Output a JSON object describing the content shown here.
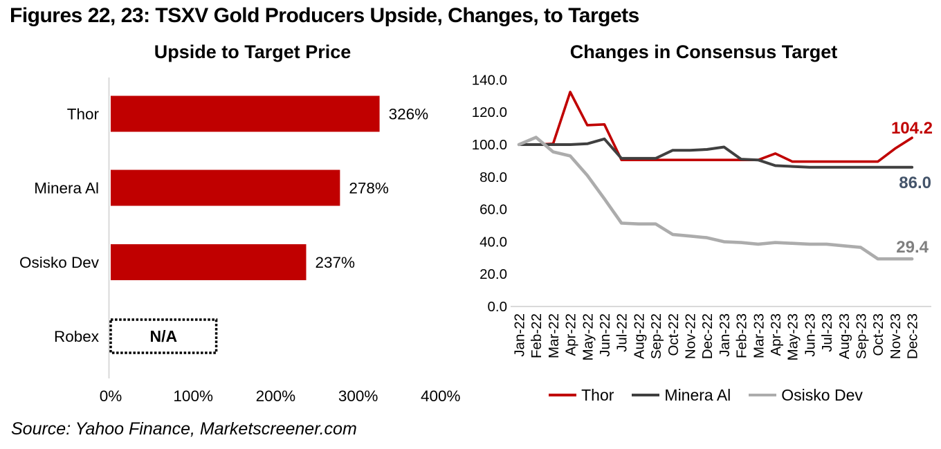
{
  "page": {
    "title": "Figures 22, 23: TSXV Gold Producers Upside, Changes, to Targets",
    "source": "Source: Yahoo Finance, Marketscreener.com"
  },
  "colors": {
    "bar_red": "#C00000",
    "thor_red": "#C00000",
    "minera_dark": "#404040",
    "osisko_gray": "#ACACAC",
    "label_red": "#C00000",
    "label_dark": "#44546A",
    "label_gray": "#7F7F7F",
    "axis_line": "#D9D9D9",
    "text": "#000000"
  },
  "chart_data": [
    {
      "type": "bar",
      "orientation": "horizontal",
      "title": "Upside to Target Price",
      "categories": [
        "Thor",
        "Minera Al",
        "Osisko Dev",
        "Robex"
      ],
      "values": [
        326,
        278,
        237,
        null
      ],
      "value_labels": [
        "326%",
        "278%",
        "237%",
        "N/A"
      ],
      "na_note": {
        "category": "Robex",
        "label": "N/A",
        "box_extent_pct": 128
      },
      "xlim": [
        0,
        400
      ],
      "x_ticks": [
        "0%",
        "100%",
        "200%",
        "300%",
        "400%"
      ],
      "x_tick_values": [
        0,
        100,
        200,
        300,
        400
      ],
      "grid": false,
      "bar_color": "#C00000"
    },
    {
      "type": "line",
      "title": "Changes in Consensus Target",
      "x": [
        "Jan-22",
        "Feb-22",
        "Mar-22",
        "Apr-22",
        "May-22",
        "Jun-22",
        "Jul-22",
        "Aug-22",
        "Sep-22",
        "Oct-22",
        "Nov-22",
        "Dec-22",
        "Jan-23",
        "Feb-23",
        "Mar-23",
        "Apr-23",
        "May-23",
        "Jun-23",
        "Jul-23",
        "Aug-23",
        "Sep-23",
        "Oct-23",
        "Nov-23",
        "Dec-23"
      ],
      "ylim": [
        0,
        140
      ],
      "y_ticks": [
        "140.0",
        "120.0",
        "100.0",
        "80.0",
        "60.0",
        "40.0",
        "20.0",
        "0.0"
      ],
      "y_tick_values": [
        140,
        120,
        100,
        80,
        60,
        40,
        20,
        0
      ],
      "grid": false,
      "legend_position": "bottom",
      "series": [
        {
          "name": "Thor",
          "color": "#C00000",
          "end_label": "104.2",
          "end_label_color": "#C00000",
          "values": [
            100,
            100,
            100.5,
            132.5,
            112,
            112.5,
            90.5,
            90.5,
            90.5,
            90.5,
            90.5,
            90.5,
            90.5,
            90.5,
            90.5,
            94.5,
            89.5,
            89.5,
            89.5,
            89.5,
            89.5,
            89.5,
            97.5,
            104.2
          ]
        },
        {
          "name": "Minera Al",
          "color": "#404040",
          "end_label": "86.0",
          "end_label_color": "#44546A",
          "values": [
            100,
            100,
            100,
            100,
            100.5,
            103.5,
            91.5,
            91.5,
            91.5,
            96.5,
            96.5,
            97,
            98.5,
            91,
            90.5,
            87,
            86.5,
            86,
            86,
            86,
            86,
            86,
            86,
            86
          ]
        },
        {
          "name": "Osisko Dev",
          "color": "#ACACAC",
          "end_label": "29.4",
          "end_label_color": "#7F7F7F",
          "values": [
            100,
            104.5,
            95.5,
            93,
            81,
            66.5,
            51.5,
            51,
            51,
            44.5,
            43.5,
            42.5,
            40,
            39.5,
            38.5,
            39.5,
            39,
            38.5,
            38.5,
            37.5,
            36.5,
            29.4,
            29.4,
            29.4
          ]
        }
      ]
    }
  ]
}
